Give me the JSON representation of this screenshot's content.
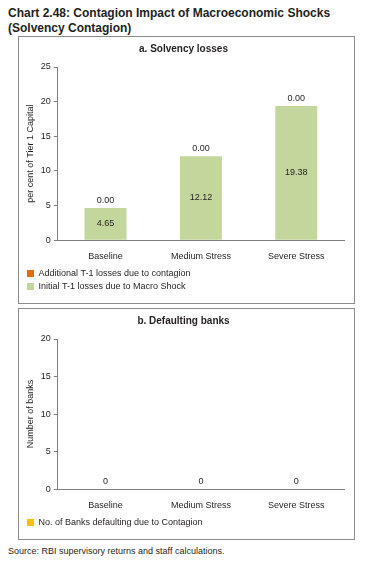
{
  "title": "Chart 2.48: Contagion Impact of Macroeconomic Shocks (Solvency Contagion)",
  "source": "Source: RBI supervisory returns and staff calculations.",
  "chart_data": [
    {
      "type": "bar",
      "title": "a. Solvency losses",
      "y_label": "per cent of Tier 1 Capital",
      "categories": [
        "Baseline",
        "Medium Stress",
        "Severe Stress"
      ],
      "stacked": true,
      "data_labels": true,
      "legend": "bottom",
      "grid": false,
      "ylim": [
        0,
        25
      ],
      "yticks": [
        0,
        5,
        10,
        15,
        20,
        25
      ],
      "series": [
        {
          "name": "Initial T-1 losses due to Macro Shock",
          "color": "#c3d69b",
          "values": [
            4.65,
            12.12,
            19.38
          ]
        },
        {
          "name": "Additional T-1 losses due to contagion",
          "color": "#e46c0a",
          "values": [
            0,
            0,
            0
          ],
          "value_labels": [
            "0.00",
            "0.00",
            "0.00"
          ]
        }
      ]
    },
    {
      "type": "bar",
      "title": "b. Defaulting banks",
      "y_label": "Number of banks",
      "categories": [
        "Baseline",
        "Medium Stress",
        "Severe Stress"
      ],
      "data_labels": true,
      "legend": "bottom",
      "grid": false,
      "ylim": [
        0,
        20
      ],
      "yticks": [
        0,
        5,
        10,
        15,
        20
      ],
      "series": [
        {
          "name": "No. of Banks defaulting due to Contagion",
          "color": "#ffc000",
          "values": [
            0,
            0,
            0
          ]
        }
      ]
    }
  ]
}
